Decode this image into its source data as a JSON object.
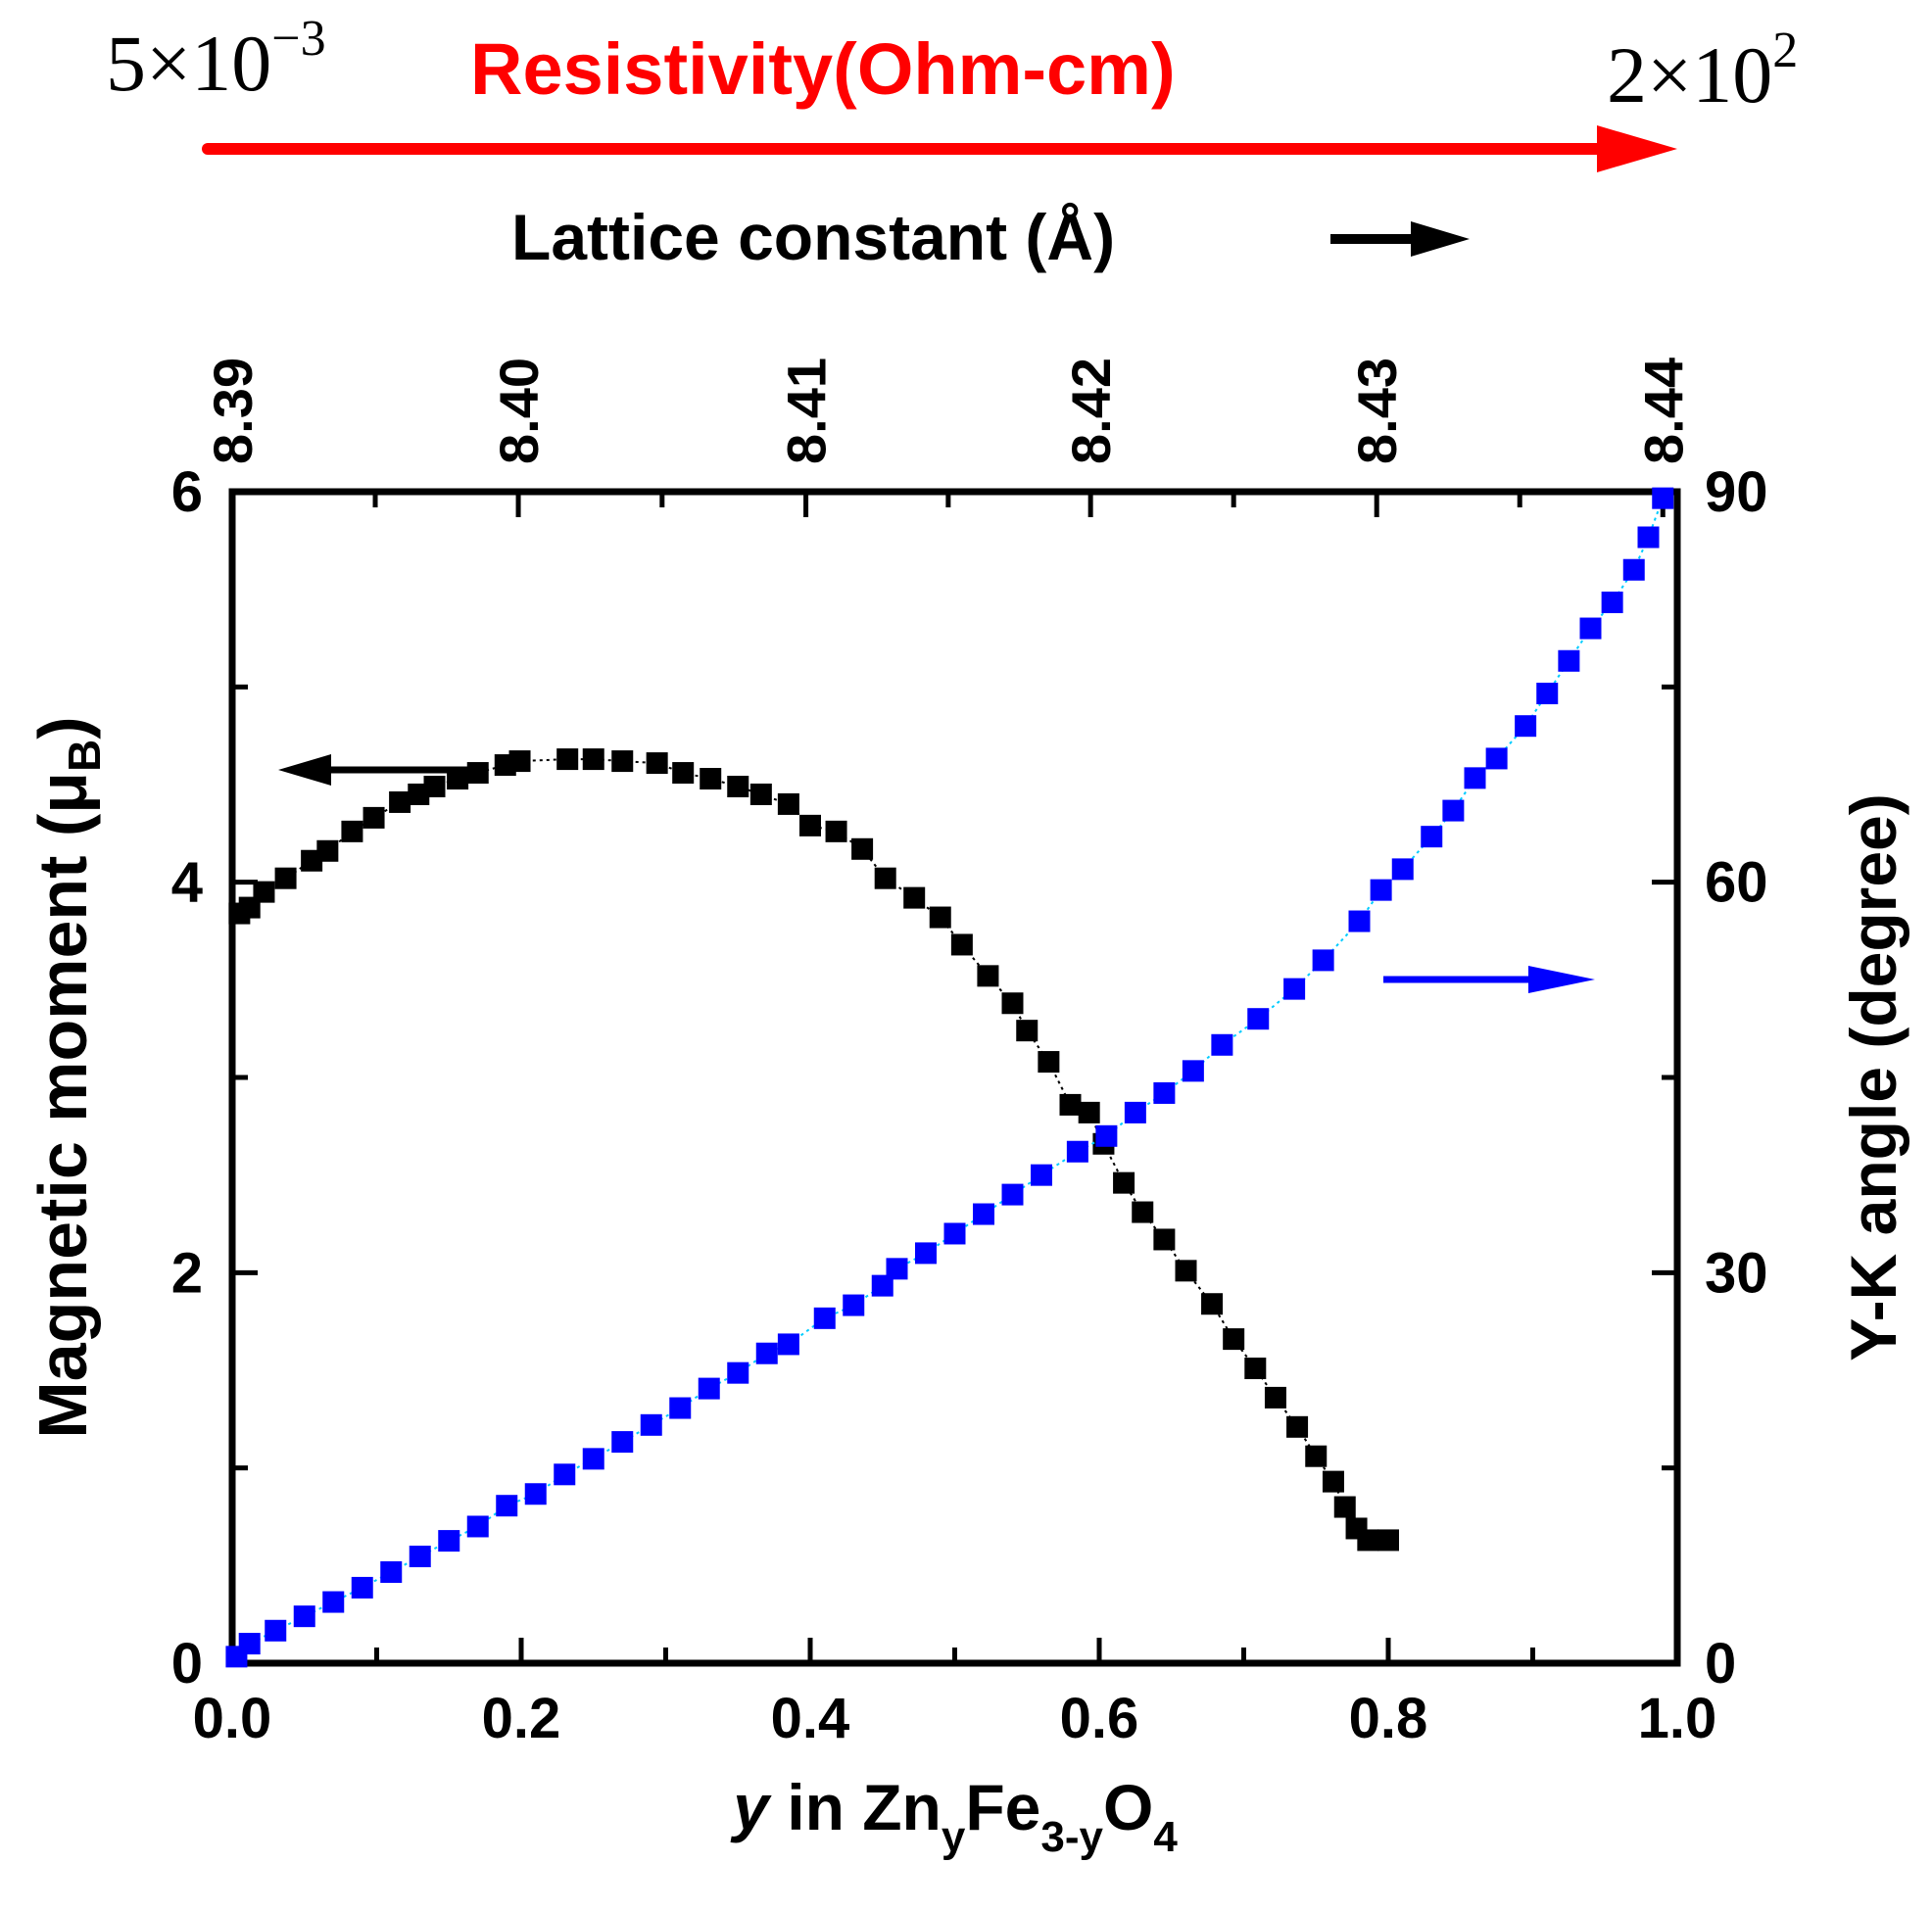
{
  "chart_data": {
    "type": "scatter",
    "title": "",
    "xlabel": "y in ZnyFe3-yO4",
    "xlabel_parts": {
      "italic": "y",
      "text1": " in Zn",
      "sub1": "y",
      "text2": "Fe",
      "sub2": "3-y",
      "text3": "O",
      "sub3": "4"
    },
    "ylabel_left": "Magnetic moment (μB)",
    "ylabel_left_parts": {
      "text": "Magnetic moment (μ",
      "sub": "B",
      "close": ")"
    },
    "ylabel_right": "Y-K angle (degree)",
    "top_axis_label": "Lattice constant (Å)",
    "resistivity": {
      "label": "Resistivity(Ohm-cm)",
      "start": {
        "mant": "5×10",
        "exp": "−3"
      },
      "end": {
        "mant": "2×10",
        "exp": "2"
      },
      "color": "#ff0000"
    },
    "xlim": [
      0.0,
      1.0
    ],
    "ylim_left": [
      0,
      6
    ],
    "ylim_right": [
      0,
      90
    ],
    "x_ticks": [
      "0.0",
      "0.2",
      "0.4",
      "0.6",
      "0.8",
      "1.0"
    ],
    "x_tick_values": [
      0.0,
      0.2,
      0.4,
      0.6,
      0.8,
      1.0
    ],
    "y_left_ticks": [
      "0",
      "2",
      "4",
      "6"
    ],
    "y_left_tick_values": [
      0,
      2,
      4,
      6
    ],
    "y_right_ticks": [
      "0",
      "30",
      "60",
      "90"
    ],
    "y_right_tick_values": [
      0,
      30,
      60,
      90
    ],
    "top_ticks": [
      "8.39",
      "8.40",
      "8.41",
      "8.42",
      "8.43",
      "8.44"
    ],
    "top_tick_positions": [
      0.0,
      0.198,
      0.397,
      0.594,
      0.792,
      0.99
    ],
    "grid": false,
    "series": [
      {
        "name": "Magnetic moment",
        "axis": "left",
        "color": "#000000",
        "marker": "square",
        "x": [
          0.005,
          0.012,
          0.022,
          0.037,
          0.055,
          0.066,
          0.083,
          0.098,
          0.116,
          0.129,
          0.14,
          0.156,
          0.17,
          0.189,
          0.199,
          0.232,
          0.25,
          0.27,
          0.294,
          0.312,
          0.331,
          0.35,
          0.366,
          0.385,
          0.4,
          0.418,
          0.436,
          0.452,
          0.472,
          0.49,
          0.505,
          0.523,
          0.54,
          0.55,
          0.565,
          0.58,
          0.593,
          0.603,
          0.617,
          0.63,
          0.645,
          0.66,
          0.678,
          0.693,
          0.708,
          0.722,
          0.737,
          0.75,
          0.762,
          0.77,
          0.778,
          0.786,
          0.8
        ],
        "y": [
          3.84,
          3.87,
          3.95,
          4.02,
          4.11,
          4.16,
          4.26,
          4.33,
          4.41,
          4.45,
          4.49,
          4.53,
          4.56,
          4.6,
          4.62,
          4.63,
          4.63,
          4.62,
          4.61,
          4.56,
          4.53,
          4.49,
          4.45,
          4.4,
          4.29,
          4.26,
          4.17,
          4.02,
          3.92,
          3.82,
          3.68,
          3.52,
          3.38,
          3.24,
          3.08,
          2.86,
          2.82,
          2.66,
          2.46,
          2.31,
          2.17,
          2.01,
          1.84,
          1.66,
          1.51,
          1.36,
          1.21,
          1.06,
          0.93,
          0.8,
          0.69,
          0.63,
          0.63
        ]
      },
      {
        "name": "Y-K angle",
        "axis": "right",
        "color": "#0000ff",
        "line_color": "#00ccff",
        "marker": "square",
        "x": [
          0.003,
          0.012,
          0.03,
          0.05,
          0.07,
          0.09,
          0.11,
          0.13,
          0.15,
          0.17,
          0.19,
          0.21,
          0.23,
          0.25,
          0.27,
          0.29,
          0.31,
          0.33,
          0.35,
          0.37,
          0.385,
          0.41,
          0.43,
          0.45,
          0.46,
          0.48,
          0.5,
          0.52,
          0.54,
          0.56,
          0.585,
          0.605,
          0.625,
          0.645,
          0.665,
          0.685,
          0.71,
          0.735,
          0.755,
          0.78,
          0.795,
          0.81,
          0.83,
          0.845,
          0.86,
          0.875,
          0.895,
          0.91,
          0.925,
          0.94,
          0.955,
          0.97,
          0.98,
          0.99
        ],
        "y": [
          0.5,
          1.5,
          2.5,
          3.6,
          4.7,
          5.8,
          7.0,
          8.2,
          9.4,
          10.5,
          12.1,
          13.0,
          14.5,
          15.7,
          17.0,
          18.3,
          19.6,
          21.1,
          22.3,
          23.8,
          24.5,
          26.5,
          27.5,
          29.0,
          30.3,
          31.5,
          33.0,
          34.5,
          36.0,
          37.5,
          39.3,
          40.5,
          42.3,
          43.8,
          45.5,
          47.5,
          49.5,
          51.8,
          54.0,
          57.0,
          59.4,
          61.0,
          63.5,
          65.5,
          68.0,
          69.5,
          72.0,
          74.5,
          77.0,
          79.5,
          81.5,
          84.0,
          86.5,
          89.5
        ]
      }
    ],
    "annotations": [
      {
        "type": "arrow",
        "direction": "left",
        "color": "#000000",
        "meaning": "black series uses left axis"
      },
      {
        "type": "arrow",
        "direction": "right",
        "color": "#0000ff",
        "meaning": "blue series uses right axis"
      },
      {
        "type": "arrow",
        "direction": "right",
        "color": "#ff0000",
        "meaning": "resistivity increases"
      },
      {
        "type": "arrow",
        "direction": "right",
        "color": "#000000",
        "meaning": "lattice constant increases"
      }
    ]
  }
}
